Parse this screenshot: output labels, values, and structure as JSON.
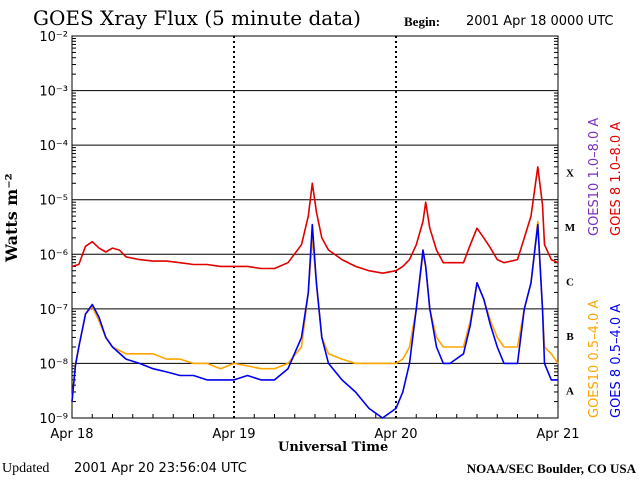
{
  "header": {
    "title": "GOES Xray Flux (5 minute data)",
    "begin_label": "Begin:",
    "begin_value": "2001 Apr 18 0000 UTC"
  },
  "footer": {
    "updated_label": "Updated",
    "updated_value": "2001 Apr 20 23:56:04 UTC",
    "credit": "NOAA/SEC Boulder, CO USA"
  },
  "chart_data": {
    "type": "line",
    "title": "GOES Xray Flux (5 minute data)",
    "xlabel": "Universal Time",
    "ylabel": "Watts m⁻²",
    "y_scale": "log",
    "ylim": [
      1e-09,
      0.01
    ],
    "xlim": [
      0,
      72
    ],
    "x_unit": "hours since 2001 Apr 18 0000 UTC",
    "x_ticks": [
      {
        "x": 0,
        "label": "Apr 18"
      },
      {
        "x": 24,
        "label": "Apr 19"
      },
      {
        "x": 48,
        "label": "Apr 20"
      },
      {
        "x": 72,
        "label": "Apr 21"
      }
    ],
    "y_ticks": [
      {
        "exp": -2,
        "label": "10⁻²"
      },
      {
        "exp": -3,
        "label": "10⁻³"
      },
      {
        "exp": -4,
        "label": "10⁻⁴"
      },
      {
        "exp": -5,
        "label": "10⁻⁵"
      },
      {
        "exp": -6,
        "label": "10⁻⁶"
      },
      {
        "exp": -7,
        "label": "10⁻⁷"
      },
      {
        "exp": -8,
        "label": "10⁻⁸"
      },
      {
        "exp": -9,
        "label": "10⁻⁹"
      }
    ],
    "flare_classes": [
      {
        "label": "X",
        "exp": -4
      },
      {
        "label": "M",
        "exp": -5
      },
      {
        "label": "C",
        "exp": -6
      },
      {
        "label": "B",
        "exp": -7
      },
      {
        "label": "A",
        "exp": -8
      }
    ],
    "grid": "horizontal lines at each decade, dotted lines at day boundaries",
    "legend_placement": "right, vertical",
    "series": [
      {
        "name": "GOES10 1.0–8.0 A",
        "color": "#7b2fbe",
        "points": []
      },
      {
        "name": "GOES 8 1.0–8.0 A",
        "color": "#e00000",
        "points": [
          [
            0,
            6e-07
          ],
          [
            1,
            6.5e-07
          ],
          [
            2,
            1.4e-06
          ],
          [
            3,
            1.7e-06
          ],
          [
            4,
            1.3e-06
          ],
          [
            5,
            1.1e-06
          ],
          [
            6,
            1.3e-06
          ],
          [
            7,
            1.2e-06
          ],
          [
            8,
            9e-07
          ],
          [
            10,
            8e-07
          ],
          [
            12,
            7.5e-07
          ],
          [
            14,
            7.5e-07
          ],
          [
            16,
            7e-07
          ],
          [
            18,
            6.5e-07
          ],
          [
            20,
            6.5e-07
          ],
          [
            22,
            6e-07
          ],
          [
            24,
            6e-07
          ],
          [
            26,
            6e-07
          ],
          [
            28,
            5.5e-07
          ],
          [
            30,
            5.5e-07
          ],
          [
            32,
            7e-07
          ],
          [
            34,
            1.5e-06
          ],
          [
            35,
            5e-06
          ],
          [
            35.6,
            2e-05
          ],
          [
            36.2,
            6e-06
          ],
          [
            37,
            2e-06
          ],
          [
            38,
            1.2e-06
          ],
          [
            40,
            8e-07
          ],
          [
            42,
            6e-07
          ],
          [
            44,
            5e-07
          ],
          [
            46,
            4.5e-07
          ],
          [
            48,
            5e-07
          ],
          [
            49,
            6e-07
          ],
          [
            50,
            8e-07
          ],
          [
            51,
            1.5e-06
          ],
          [
            52,
            4e-06
          ],
          [
            52.4,
            9e-06
          ],
          [
            53,
            3e-06
          ],
          [
            54,
            1.2e-06
          ],
          [
            55,
            7e-07
          ],
          [
            56,
            7e-07
          ],
          [
            58,
            7e-07
          ],
          [
            59,
            1.5e-06
          ],
          [
            60,
            3e-06
          ],
          [
            61,
            2e-06
          ],
          [
            62,
            1.3e-06
          ],
          [
            63,
            8e-07
          ],
          [
            64,
            7e-07
          ],
          [
            66,
            8e-07
          ],
          [
            67,
            2e-06
          ],
          [
            68,
            5e-06
          ],
          [
            69,
            4e-05
          ],
          [
            69.7,
            8e-06
          ],
          [
            70,
            1.5e-06
          ],
          [
            71,
            8e-07
          ],
          [
            72,
            7e-07
          ]
        ]
      },
      {
        "name": "GOES10 0.5–4.0 A",
        "color": "#ffa500",
        "points": [
          [
            0,
            2e-09
          ],
          [
            0.5,
            1e-08
          ],
          [
            1,
            2e-08
          ],
          [
            2,
            8e-08
          ],
          [
            3,
            1.1e-07
          ],
          [
            4,
            6e-08
          ],
          [
            5,
            3e-08
          ],
          [
            6,
            2e-08
          ],
          [
            8,
            1.5e-08
          ],
          [
            10,
            1.5e-08
          ],
          [
            12,
            1.5e-08
          ],
          [
            14,
            1.2e-08
          ],
          [
            16,
            1.2e-08
          ],
          [
            18,
            1e-08
          ],
          [
            20,
            1e-08
          ],
          [
            22,
            8e-09
          ],
          [
            24,
            1e-08
          ],
          [
            26,
            9e-09
          ],
          [
            28,
            8e-09
          ],
          [
            30,
            8e-09
          ],
          [
            32,
            1e-08
          ],
          [
            34,
            2e-08
          ],
          [
            35,
            2e-07
          ],
          [
            35.6,
            2e-06
          ],
          [
            36.2,
            3e-07
          ],
          [
            37,
            3e-08
          ],
          [
            38,
            1.5e-08
          ],
          [
            40,
            1.2e-08
          ],
          [
            42,
            1e-08
          ],
          [
            44,
            1e-08
          ],
          [
            46,
            1e-08
          ],
          [
            48,
            1e-08
          ],
          [
            49,
            1.2e-08
          ],
          [
            50,
            2e-08
          ],
          [
            51,
            1e-07
          ],
          [
            52,
            1e-06
          ],
          [
            52.4,
            6e-07
          ],
          [
            53,
            1e-07
          ],
          [
            54,
            3e-08
          ],
          [
            55,
            2e-08
          ],
          [
            56,
            2e-08
          ],
          [
            58,
            2e-08
          ],
          [
            59,
            6e-08
          ],
          [
            60,
            3e-07
          ],
          [
            61,
            1.5e-07
          ],
          [
            62,
            6e-08
          ],
          [
            63,
            3e-08
          ],
          [
            64,
            2e-08
          ],
          [
            66,
            2e-08
          ],
          [
            67,
            1e-07
          ],
          [
            68,
            3e-07
          ],
          [
            69,
            4e-06
          ],
          [
            69.7,
            1e-07
          ],
          [
            70,
            2e-08
          ],
          [
            71,
            1.5e-08
          ],
          [
            72,
            1e-08
          ]
        ]
      },
      {
        "name": "GOES 8 0.5–4.0 A",
        "color": "#0000ee",
        "points": [
          [
            0,
            2e-09
          ],
          [
            0.5,
            9e-09
          ],
          [
            1,
            2e-08
          ],
          [
            2,
            8e-08
          ],
          [
            3,
            1.2e-07
          ],
          [
            4,
            7e-08
          ],
          [
            5,
            3e-08
          ],
          [
            6,
            2e-08
          ],
          [
            8,
            1.2e-08
          ],
          [
            10,
            1e-08
          ],
          [
            12,
            8e-09
          ],
          [
            14,
            7e-09
          ],
          [
            16,
            6e-09
          ],
          [
            18,
            6e-09
          ],
          [
            20,
            5e-09
          ],
          [
            22,
            5e-09
          ],
          [
            24,
            5e-09
          ],
          [
            26,
            6e-09
          ],
          [
            28,
            5e-09
          ],
          [
            30,
            5e-09
          ],
          [
            32,
            8e-09
          ],
          [
            34,
            3e-08
          ],
          [
            35,
            2e-07
          ],
          [
            35.6,
            3.5e-06
          ],
          [
            36.2,
            3e-07
          ],
          [
            37,
            3e-08
          ],
          [
            38,
            1e-08
          ],
          [
            40,
            5e-09
          ],
          [
            42,
            3e-09
          ],
          [
            44,
            1.5e-09
          ],
          [
            46,
            1e-09
          ],
          [
            48,
            1.5e-09
          ],
          [
            49,
            3e-09
          ],
          [
            50,
            1e-08
          ],
          [
            51,
            1e-07
          ],
          [
            52,
            1.2e-06
          ],
          [
            52.4,
            6e-07
          ],
          [
            53,
            1e-07
          ],
          [
            54,
            2e-08
          ],
          [
            55,
            1e-08
          ],
          [
            56,
            1e-08
          ],
          [
            58,
            1.5e-08
          ],
          [
            59,
            5e-08
          ],
          [
            60,
            3e-07
          ],
          [
            61,
            1.5e-07
          ],
          [
            62,
            5e-08
          ],
          [
            63,
            2e-08
          ],
          [
            64,
            1e-08
          ],
          [
            66,
            1e-08
          ],
          [
            67,
            1e-07
          ],
          [
            68,
            3e-07
          ],
          [
            69,
            3.5e-06
          ],
          [
            69.7,
            1e-07
          ],
          [
            70,
            1e-08
          ],
          [
            71,
            5e-09
          ],
          [
            72,
            5e-09
          ]
        ]
      }
    ]
  }
}
